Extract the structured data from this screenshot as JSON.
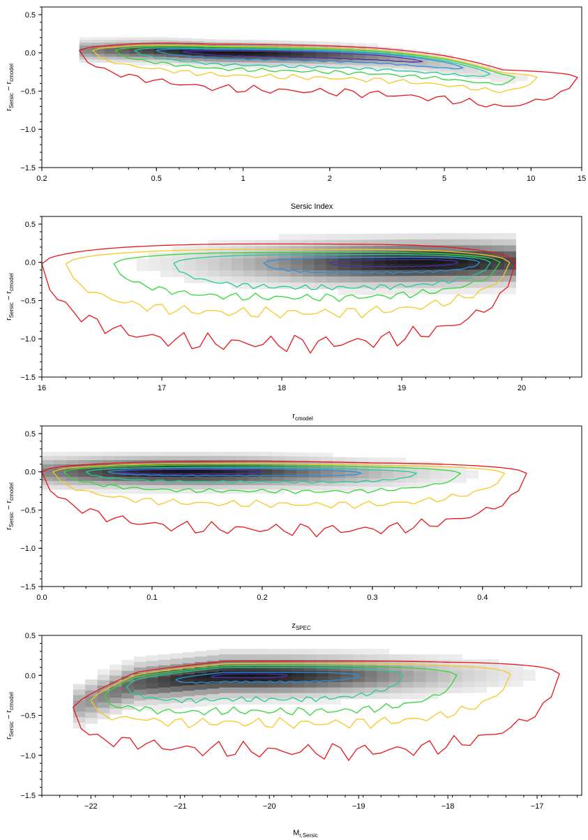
{
  "chart_data": [
    {
      "id": "sersic-index",
      "type": "2d-histogram-contour",
      "xscale": "log",
      "xlim": [
        0.2,
        15
      ],
      "ylim": [
        -1.5,
        0.6
      ],
      "xticks": [
        0.2,
        0.5,
        1,
        2,
        5,
        10,
        15
      ],
      "xtick_labels": [
        "0.2",
        "0.5",
        "1",
        "2",
        "5",
        "10",
        "15"
      ],
      "yticks": [
        -1.5,
        -1.0,
        -0.5,
        0.0,
        0.5
      ],
      "ytick_labels": [
        "−1.5",
        "−1.0",
        "−0.5",
        "0.0",
        "0.5"
      ],
      "xlabel": "Sersic Index",
      "ylabel_main": "r",
      "ylabel_sub1": "Sersic",
      "ylabel_mid": " − r",
      "ylabel_sub2": "cmodel",
      "ridge": [
        [
          0.5,
          0.03
        ],
        [
          0.8,
          0.0
        ],
        [
          1.2,
          -0.01
        ],
        [
          2,
          -0.03
        ],
        [
          3,
          -0.06
        ],
        [
          5,
          -0.15
        ],
        [
          8,
          -0.32
        ]
      ],
      "peak_x": 0.9,
      "contour_widths": [
        {
          "level": "red",
          "x": [
            0.27,
            14.5
          ],
          "top": 0.12,
          "bot": 0.48
        },
        {
          "level": "yellow",
          "x": [
            0.3,
            10.5
          ],
          "top": 0.09,
          "bot": 0.3
        },
        {
          "level": "green",
          "x": [
            0.36,
            8.8
          ],
          "top": 0.08,
          "bot": 0.22
        },
        {
          "level": "cyan",
          "x": [
            0.42,
            7.2
          ],
          "top": 0.06,
          "bot": 0.16
        },
        {
          "level": "blue",
          "x": [
            0.5,
            5.8
          ],
          "top": 0.05,
          "bot": 0.08
        },
        {
          "level": "purple",
          "x": [
            0.62,
            4.2
          ],
          "top": 0.03,
          "bot": 0.04
        }
      ]
    },
    {
      "id": "r-cmodel",
      "type": "2d-histogram-contour",
      "xscale": "linear",
      "xlim": [
        16,
        20.5
      ],
      "ylim": [
        -1.5,
        0.6
      ],
      "xticks": [
        16,
        17,
        18,
        19,
        20
      ],
      "xtick_labels": [
        "16",
        "17",
        "18",
        "19",
        "20"
      ],
      "yticks": [
        -1.5,
        -1.0,
        -0.5,
        0.0,
        0.5
      ],
      "ytick_labels": [
        "−1.5",
        "−1.0",
        "−0.5",
        "0.0",
        "0.5"
      ],
      "xlabel_main": "r",
      "xlabel_sub": "cmodel",
      "ylabel_main": "r",
      "ylabel_sub1": "Sersic",
      "ylabel_mid": " − r",
      "ylabel_sub2": "cmodel",
      "ridge": [
        [
          16.2,
          -0.02
        ],
        [
          17.5,
          -0.01
        ],
        [
          18.5,
          -0.01
        ],
        [
          19.3,
          0.0
        ],
        [
          19.9,
          0.0
        ]
      ],
      "peak_x": 19.2,
      "contour_widths": [
        {
          "level": "red",
          "x": [
            16.0,
            19.95
          ],
          "top": 0.25,
          "bot": 1.05
        },
        {
          "level": "yellow",
          "x": [
            16.2,
            19.9
          ],
          "top": 0.18,
          "bot": 0.65
        },
        {
          "level": "green",
          "x": [
            16.6,
            19.82
          ],
          "top": 0.14,
          "bot": 0.45
        },
        {
          "level": "cyan",
          "x": [
            17.1,
            19.74
          ],
          "top": 0.11,
          "bot": 0.32
        },
        {
          "level": "blue",
          "x": [
            17.85,
            19.65
          ],
          "top": 0.07,
          "bot": 0.13
        },
        {
          "level": "purple",
          "x": [
            18.4,
            19.47
          ],
          "top": 0.04,
          "bot": 0.05
        }
      ]
    },
    {
      "id": "z-spec",
      "type": "2d-histogram-contour",
      "xscale": "linear",
      "xlim": [
        0.0,
        0.49
      ],
      "ylim": [
        -1.5,
        0.6
      ],
      "xticks": [
        0.0,
        0.1,
        0.2,
        0.3,
        0.4
      ],
      "xtick_labels": [
        "0.0",
        "0.1",
        "0.2",
        "0.3",
        "0.4"
      ],
      "yticks": [
        -1.5,
        -1.0,
        -0.5,
        0.0,
        0.5
      ],
      "ytick_labels": [
        "−1.5",
        "−1.0",
        "−0.5",
        "0.0",
        "0.5"
      ],
      "xlabel_main": "z",
      "xlabel_sub": "SPEC",
      "ylabel_main": "r",
      "ylabel_sub1": "Sersic",
      "ylabel_mid": " − r",
      "ylabel_sub2": "cmodel",
      "ridge": [
        [
          0.02,
          0.0
        ],
        [
          0.1,
          0.0
        ],
        [
          0.2,
          0.0
        ],
        [
          0.3,
          -0.02
        ],
        [
          0.4,
          -0.02
        ]
      ],
      "peak_x": 0.13,
      "contour_widths": [
        {
          "level": "red",
          "x": [
            0.0,
            0.44
          ],
          "top": 0.14,
          "bot": 0.75
        },
        {
          "level": "yellow",
          "x": [
            0.01,
            0.42
          ],
          "top": 0.11,
          "bot": 0.42
        },
        {
          "level": "green",
          "x": [
            0.02,
            0.38
          ],
          "top": 0.09,
          "bot": 0.25
        },
        {
          "level": "cyan",
          "x": [
            0.04,
            0.34
          ],
          "top": 0.06,
          "bot": 0.13
        },
        {
          "level": "blue",
          "x": [
            0.06,
            0.29
          ],
          "top": 0.04,
          "bot": 0.05
        },
        {
          "level": "purple",
          "x": [
            0.07,
            0.2
          ],
          "top": 0.03,
          "bot": 0.03
        }
      ]
    },
    {
      "id": "m-r-sersic",
      "type": "2d-histogram-contour",
      "xscale": "linear",
      "xlim": [
        -22.55,
        -16.5
      ],
      "ylim": [
        -1.5,
        0.5
      ],
      "xticks": [
        -22,
        -21,
        -20,
        -19,
        -18,
        -17
      ],
      "xtick_labels": [
        "−22",
        "−21",
        "−20",
        "−19",
        "−18",
        "−17"
      ],
      "yticks": [
        -1.5,
        -1.0,
        -0.5,
        0.0,
        0.5
      ],
      "ytick_labels": [
        "−1.5",
        "−1.0",
        "−0.5",
        "0.0",
        "0.5"
      ],
      "xlabel_main": "M",
      "xlabel_sub": "r,Sersic",
      "ylabel_main": "r",
      "ylabel_sub1": "Sersic",
      "ylabel_mid": " − r",
      "ylabel_sub2": "cmodel",
      "ridge": [
        [
          -22.2,
          -0.4
        ],
        [
          -21.5,
          -0.1
        ],
        [
          -20.5,
          0.0
        ],
        [
          -19.5,
          0.0
        ],
        [
          -18,
          0.0
        ],
        [
          -17,
          0.02
        ]
      ],
      "peak_x": -20.3,
      "contour_widths": [
        {
          "level": "red",
          "x": [
            -22.2,
            -16.75
          ],
          "top": 0.18,
          "bot": 0.95
        },
        {
          "level": "yellow",
          "x": [
            -22.0,
            -17.3
          ],
          "top": 0.15,
          "bot": 0.6
        },
        {
          "level": "green",
          "x": [
            -21.85,
            -17.9
          ],
          "top": 0.12,
          "bot": 0.45
        },
        {
          "level": "cyan",
          "x": [
            -21.6,
            -18.5
          ],
          "top": 0.1,
          "bot": 0.3
        },
        {
          "level": "blue",
          "x": [
            -21.05,
            -19.0
          ],
          "top": 0.04,
          "bot": 0.08
        },
        {
          "level": "purple",
          "x": [
            -20.65,
            -19.8
          ],
          "top": 0.02,
          "bot": 0.03
        }
      ]
    }
  ],
  "colors": {
    "red": "#e8141b",
    "yellow": "#f6c824",
    "green": "#33d63a",
    "cyan": "#22c99a",
    "blue": "#2c8fe0",
    "purple": "#4a2fb0"
  }
}
